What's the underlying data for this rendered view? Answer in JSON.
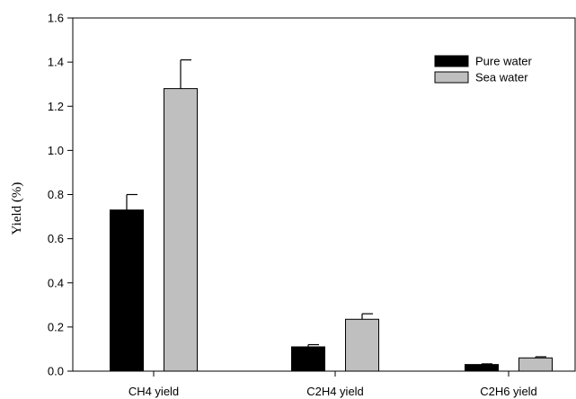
{
  "chart_data": {
    "type": "bar",
    "title": "",
    "xlabel": "",
    "ylabel": "Yield (%)",
    "ylim": [
      0,
      1.6
    ],
    "yticks": [
      "0.0",
      "0.2",
      "0.4",
      "0.6",
      "0.8",
      "1.0",
      "1.2",
      "1.4",
      "1.6"
    ],
    "categories": [
      "CH4 yield",
      "C2H4 yield",
      "C2H6 yield"
    ],
    "series": [
      {
        "name": "Pure water",
        "values": [
          0.73,
          0.11,
          0.03
        ],
        "errors": [
          0.07,
          0.01,
          0.003
        ],
        "color": "#000000"
      },
      {
        "name": "Sea water",
        "values": [
          1.28,
          0.235,
          0.06
        ],
        "errors": [
          0.13,
          0.025,
          0.005
        ],
        "color": "#bfbfbf"
      }
    ],
    "grid": false,
    "legend_position": "top-right",
    "error_bars": true
  }
}
